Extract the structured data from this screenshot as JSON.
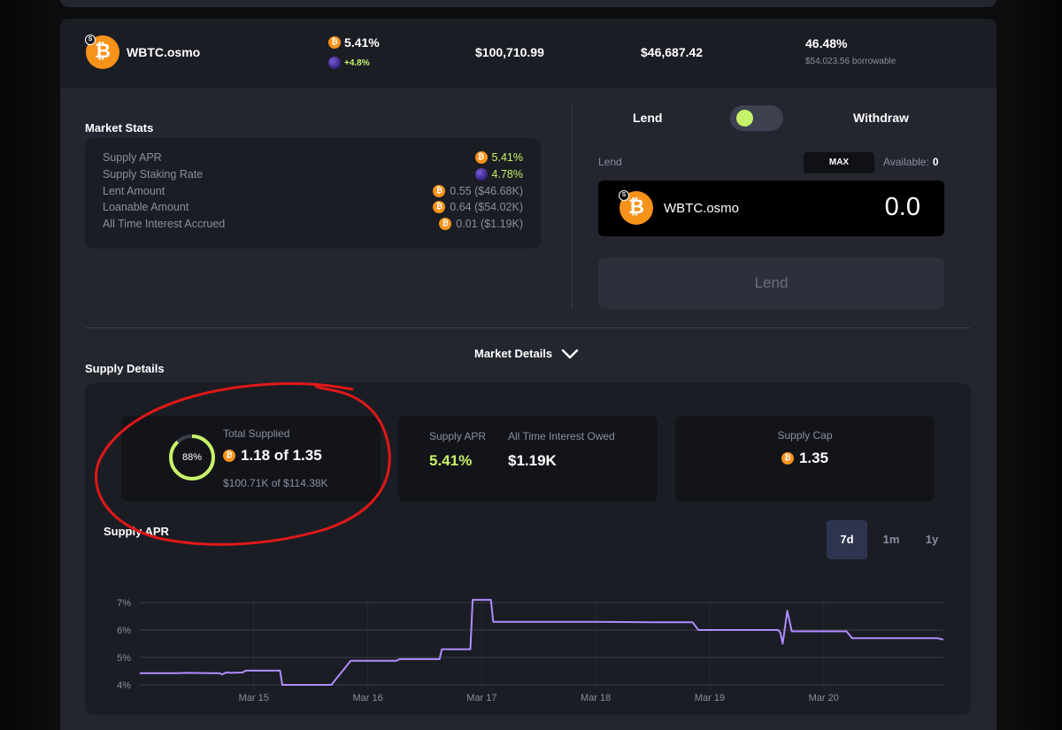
{
  "asset": {
    "name": "WBTC.osmo",
    "apr": "5.41%",
    "staking_bonus": "+4.8%",
    "supplied_usd": "$100,710.99",
    "lent_usd": "$46,687.42",
    "utilization": "46.48%",
    "borrowable": "$54,023.56 borrowable"
  },
  "market_stats": {
    "title": "Market Stats",
    "rows": [
      {
        "label": "Supply APR",
        "value": "5.41%"
      },
      {
        "label": "Supply Staking Rate",
        "value": "4.78%"
      },
      {
        "label": "Lent Amount",
        "value": "0.55 ($46.68K)"
      },
      {
        "label": "Loanable Amount",
        "value": "0.64 ($54.02K)"
      },
      {
        "label": "All Time Interest Accrued",
        "value": "0.01 ($1.19K)"
      }
    ]
  },
  "lend_panel": {
    "lend_tab": "Lend",
    "withdraw_tab": "Withdraw",
    "field_label": "Lend",
    "max_label": "MAX",
    "available_label": "Available:",
    "available_value": "0",
    "asset_name": "WBTC.osmo",
    "amount": "0.0",
    "submit_label": "Lend"
  },
  "market_details": {
    "toggle_label": "Market Details"
  },
  "supply_details": {
    "title": "Supply Details",
    "total_supplied": {
      "label": "Total Supplied",
      "percent": "88%",
      "percent_value": 0.88,
      "amount": "1.18 of 1.35",
      "usd": "$100.71K of $114.38K"
    },
    "supply_apr": {
      "label": "Supply APR",
      "value": "5.41%"
    },
    "interest_owed": {
      "label": "All Time Interest Owed",
      "value": "$1.19K"
    },
    "supply_cap": {
      "label": "Supply Cap",
      "value": "1.35"
    }
  },
  "chart_header": {
    "title": "Supply APR",
    "ranges": [
      "7d",
      "1m",
      "1y"
    ],
    "active_range": "7d"
  },
  "colors": {
    "accent_green": "#c7f36a",
    "line_purple": "#b18cff",
    "bitcoin_orange": "#f7931a",
    "annotation_red": "#e01818"
  },
  "chart_data": {
    "type": "line",
    "title": "Supply APR",
    "xlabel": "",
    "ylabel": "",
    "x_ticks": [
      "Mar 15",
      "Mar 16",
      "Mar 17",
      "Mar 18",
      "Mar 19",
      "Mar 20"
    ],
    "y_ticks": [
      "4%",
      "5%",
      "6%",
      "7%"
    ],
    "ylim": [
      4,
      7
    ],
    "xlim": [
      14.0,
      21.05
    ],
    "grid": true,
    "series": [
      {
        "x": [
          14.0,
          14.35,
          14.4,
          14.6,
          14.7,
          14.72,
          14.76,
          14.8,
          14.9,
          14.93,
          14.95,
          15.23,
          15.25,
          15.63,
          15.68,
          15.85,
          16.25,
          16.28,
          16.3,
          16.6,
          16.63,
          16.65,
          16.77,
          16.78,
          16.9,
          16.92,
          16.95,
          17.08,
          17.1,
          17.5,
          17.8,
          18.0,
          18.5,
          18.85,
          18.9,
          18.95,
          19.0,
          19.5,
          19.6,
          19.62,
          19.64,
          19.68,
          19.72,
          19.75,
          20.0,
          20.2,
          20.25,
          20.6,
          21.0,
          21.05
        ],
        "y": [
          4.43,
          4.43,
          4.44,
          4.43,
          4.43,
          4.38,
          4.45,
          4.44,
          4.45,
          4.52,
          4.52,
          4.52,
          4.0,
          4.0,
          4.0,
          4.88,
          4.88,
          4.94,
          4.94,
          4.94,
          4.94,
          5.3,
          5.3,
          5.3,
          5.3,
          7.1,
          7.1,
          7.1,
          6.3,
          6.3,
          6.3,
          6.3,
          6.28,
          6.28,
          6.0,
          6.0,
          6.0,
          6.0,
          6.0,
          5.9,
          5.5,
          6.7,
          5.95,
          5.95,
          5.95,
          5.95,
          5.7,
          5.7,
          5.7,
          5.65
        ]
      }
    ]
  }
}
